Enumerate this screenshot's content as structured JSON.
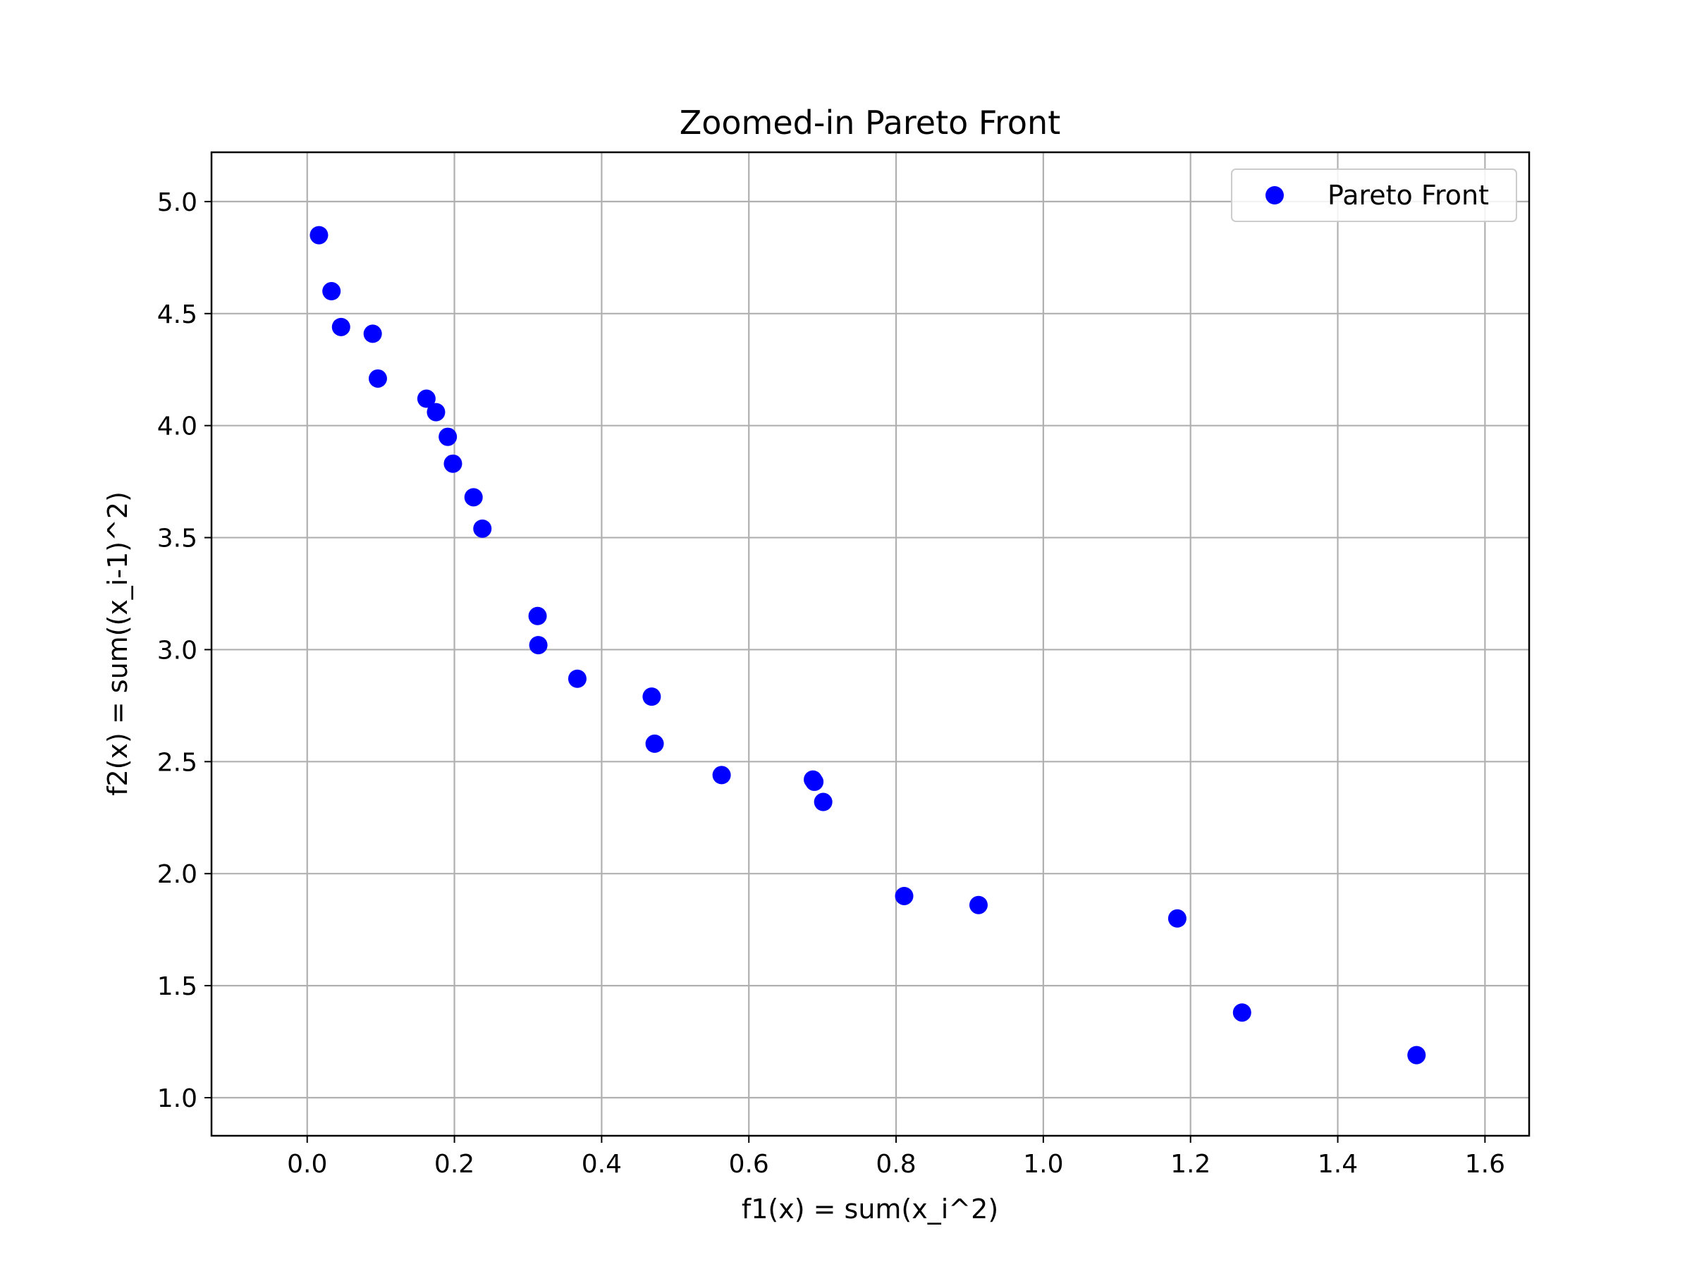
{
  "chart_data": {
    "type": "scatter",
    "title": "Zoomed-in Pareto Front",
    "xlabel": "f1(x) = sum(x_i^2)",
    "ylabel": "f2(x) = sum((x_i-1)^2)",
    "xlim": [
      -0.13,
      1.66
    ],
    "ylim": [
      0.83,
      5.22
    ],
    "xticks": [
      0.0,
      0.2,
      0.4,
      0.6,
      0.8,
      1.0,
      1.2,
      1.4,
      1.6
    ],
    "xtick_labels": [
      "0.0",
      "0.2",
      "0.4",
      "0.6",
      "0.8",
      "1.0",
      "1.2",
      "1.4",
      "1.6"
    ],
    "yticks": [
      1.0,
      1.5,
      2.0,
      2.5,
      3.0,
      3.5,
      4.0,
      4.5,
      5.0
    ],
    "ytick_labels": [
      "1.0",
      "1.5",
      "2.0",
      "2.5",
      "3.0",
      "3.5",
      "4.0",
      "4.5",
      "5.0"
    ],
    "grid": true,
    "legend_position": "top-right",
    "series": [
      {
        "name": "Pareto Front",
        "color": "#0000ff",
        "marker": "circle",
        "points": [
          {
            "x": 0.016,
            "y": 4.85
          },
          {
            "x": 0.033,
            "y": 4.6
          },
          {
            "x": 0.046,
            "y": 4.44
          },
          {
            "x": 0.089,
            "y": 4.41
          },
          {
            "x": 0.096,
            "y": 4.21
          },
          {
            "x": 0.162,
            "y": 4.12
          },
          {
            "x": 0.175,
            "y": 4.06
          },
          {
            "x": 0.191,
            "y": 3.95
          },
          {
            "x": 0.198,
            "y": 3.83
          },
          {
            "x": 0.226,
            "y": 3.68
          },
          {
            "x": 0.238,
            "y": 3.54
          },
          {
            "x": 0.313,
            "y": 3.15
          },
          {
            "x": 0.314,
            "y": 3.02
          },
          {
            "x": 0.367,
            "y": 2.87
          },
          {
            "x": 0.468,
            "y": 2.79
          },
          {
            "x": 0.472,
            "y": 2.58
          },
          {
            "x": 0.563,
            "y": 2.44
          },
          {
            "x": 0.687,
            "y": 2.42
          },
          {
            "x": 0.689,
            "y": 2.41
          },
          {
            "x": 0.701,
            "y": 2.32
          },
          {
            "x": 0.811,
            "y": 1.9
          },
          {
            "x": 0.912,
            "y": 1.86
          },
          {
            "x": 1.182,
            "y": 1.8
          },
          {
            "x": 1.27,
            "y": 1.38
          },
          {
            "x": 1.507,
            "y": 1.19
          }
        ]
      }
    ]
  }
}
